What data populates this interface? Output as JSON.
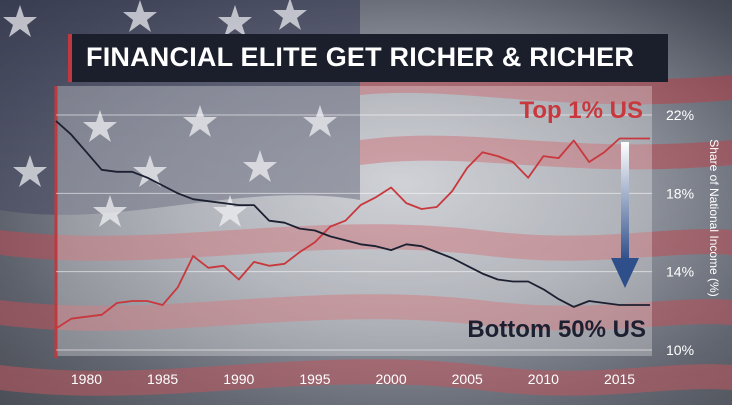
{
  "title": "FINANCIAL ELITE GET RICHER & RICHER",
  "chart_data": {
    "type": "line",
    "title": "FINANCIAL ELITE GET RICHER & RICHER",
    "xlabel": "",
    "ylabel": "Share of National Income (%)",
    "xlim": [
      1978,
      2017
    ],
    "ylim": [
      10,
      22
    ],
    "x_ticks": [
      "1980",
      "1985",
      "1990",
      "1995",
      "2000",
      "2005",
      "2010",
      "2015"
    ],
    "y_ticks": [
      "10%",
      "14%",
      "18%",
      "22%"
    ],
    "grid": true,
    "series": [
      {
        "name": "Top 1% US",
        "color": "#c8383d",
        "x": [
          1978,
          1979,
          1980,
          1981,
          1982,
          1983,
          1984,
          1985,
          1986,
          1987,
          1988,
          1989,
          1990,
          1991,
          1992,
          1993,
          1994,
          1995,
          1996,
          1997,
          1998,
          1999,
          2000,
          2001,
          2002,
          2003,
          2004,
          2005,
          2006,
          2007,
          2008,
          2009,
          2010,
          2011,
          2012,
          2013,
          2014,
          2015,
          2016,
          2017
        ],
        "y": [
          11.1,
          11.6,
          11.7,
          11.8,
          12.4,
          12.5,
          12.5,
          12.3,
          13.2,
          14.8,
          14.2,
          14.3,
          13.6,
          14.5,
          14.3,
          14.4,
          15.0,
          15.5,
          16.3,
          16.6,
          17.4,
          17.8,
          18.3,
          17.5,
          17.2,
          17.3,
          18.1,
          19.3,
          20.1,
          19.9,
          19.6,
          18.8,
          19.9,
          19.8,
          20.7,
          19.6,
          20.1,
          20.8,
          20.8,
          20.8
        ]
      },
      {
        "name": "Bottom 50% US",
        "color": "#1c2030",
        "x": [
          1978,
          1979,
          1980,
          1981,
          1982,
          1983,
          1984,
          1985,
          1986,
          1987,
          1988,
          1989,
          1990,
          1991,
          1992,
          1993,
          1994,
          1995,
          1996,
          1997,
          1998,
          1999,
          2000,
          2001,
          2002,
          2003,
          2004,
          2005,
          2006,
          2007,
          2008,
          2009,
          2010,
          2011,
          2012,
          2013,
          2014,
          2015,
          2016,
          2017
        ],
        "y": [
          21.7,
          21.0,
          20.1,
          19.2,
          19.1,
          19.1,
          18.8,
          18.4,
          18.0,
          17.7,
          17.6,
          17.5,
          17.4,
          17.4,
          16.6,
          16.5,
          16.2,
          16.1,
          15.8,
          15.6,
          15.4,
          15.3,
          15.1,
          15.4,
          15.3,
          15.0,
          14.7,
          14.3,
          13.9,
          13.6,
          13.5,
          13.5,
          13.1,
          12.6,
          12.2,
          12.5,
          12.4,
          12.3,
          12.3,
          12.3
        ]
      }
    ],
    "annotations": [
      "Top 1% US",
      "Bottom 50% US"
    ]
  }
}
